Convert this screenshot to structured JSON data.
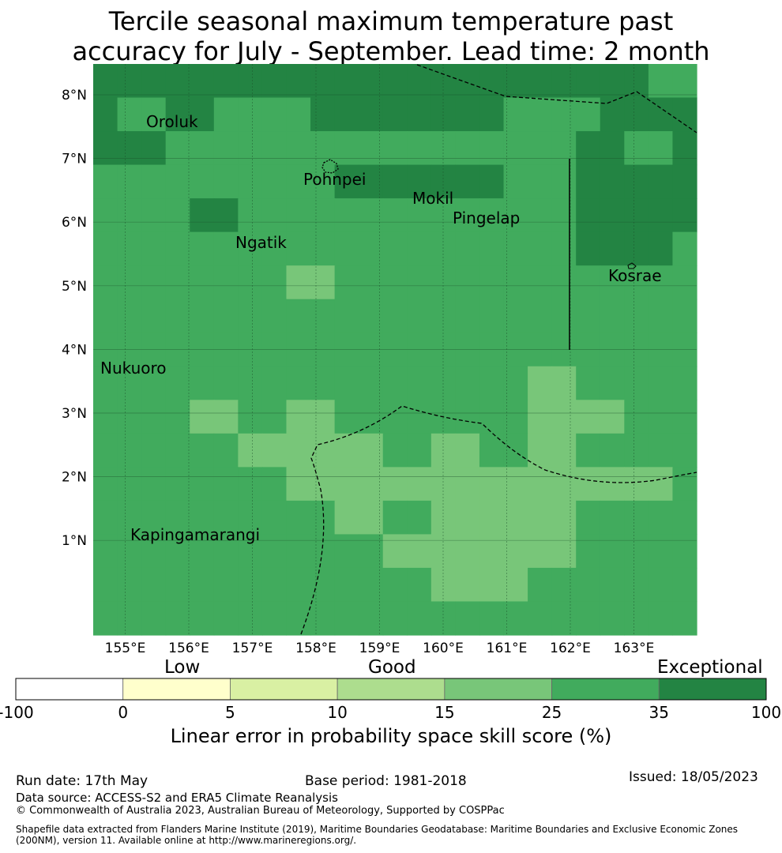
{
  "title_line1": "Tercile seasonal maximum temperature past",
  "title_line2": "accuracy for July - September. Lead time: 2 month",
  "map": {
    "lon_labels": [
      "155°E",
      "156°E",
      "157°E",
      "158°E",
      "159°E",
      "160°E",
      "161°E",
      "162°E",
      "163°E"
    ],
    "lat_labels": [
      "8°N",
      "7°N",
      "6°N",
      "5°N",
      "4°N",
      "3°N",
      "2°N",
      "1°N"
    ],
    "places": [
      "Oroluk",
      "Pohnpei",
      "Mokil",
      "Pingelap",
      "Ngatik",
      "Kosrae",
      "Nukuoro",
      "Kapingamarangi"
    ],
    "cell_levels": [
      [
        6,
        6,
        6,
        6,
        6,
        6,
        6,
        6,
        6,
        6,
        6,
        6,
        6,
        6,
        6,
        6,
        6,
        6,
        6,
        6,
        6,
        6,
        6,
        5,
        5
      ],
      [
        6,
        5,
        5,
        6,
        6,
        5,
        5,
        5,
        5,
        6,
        6,
        6,
        6,
        6,
        6,
        6,
        6,
        5,
        5,
        5,
        5,
        6,
        6,
        6,
        6
      ],
      [
        6,
        6,
        6,
        5,
        5,
        5,
        5,
        5,
        5,
        5,
        5,
        5,
        5,
        5,
        5,
        5,
        5,
        5,
        5,
        5,
        6,
        6,
        5,
        5,
        6
      ],
      [
        5,
        5,
        5,
        5,
        5,
        5,
        5,
        5,
        5,
        5,
        6,
        6,
        6,
        6,
        6,
        6,
        6,
        5,
        5,
        5,
        6,
        6,
        6,
        6,
        6
      ],
      [
        5,
        5,
        5,
        5,
        6,
        6,
        5,
        5,
        5,
        5,
        5,
        5,
        5,
        5,
        5,
        5,
        5,
        5,
        5,
        5,
        6,
        6,
        6,
        6,
        6
      ],
      [
        5,
        5,
        5,
        5,
        5,
        5,
        5,
        5,
        5,
        5,
        5,
        5,
        5,
        5,
        5,
        5,
        5,
        5,
        5,
        5,
        6,
        6,
        6,
        6,
        5
      ],
      [
        5,
        5,
        5,
        5,
        5,
        5,
        5,
        5,
        4,
        4,
        5,
        5,
        5,
        5,
        5,
        5,
        5,
        5,
        5,
        5,
        5,
        5,
        5,
        5,
        5
      ],
      [
        5,
        5,
        5,
        5,
        5,
        5,
        5,
        5,
        5,
        5,
        5,
        5,
        5,
        5,
        5,
        5,
        5,
        5,
        5,
        5,
        5,
        5,
        5,
        5,
        5
      ],
      [
        5,
        5,
        5,
        5,
        5,
        5,
        5,
        5,
        5,
        5,
        5,
        5,
        5,
        5,
        5,
        5,
        5,
        5,
        5,
        5,
        5,
        5,
        5,
        5,
        5
      ],
      [
        5,
        5,
        5,
        5,
        5,
        5,
        5,
        5,
        5,
        5,
        5,
        5,
        5,
        5,
        5,
        5,
        5,
        5,
        4,
        4,
        5,
        5,
        5,
        5,
        5
      ],
      [
        5,
        5,
        5,
        5,
        4,
        4,
        5,
        5,
        4,
        4,
        5,
        5,
        5,
        5,
        5,
        5,
        5,
        5,
        4,
        4,
        4,
        4,
        5,
        5,
        5
      ],
      [
        5,
        5,
        5,
        5,
        5,
        5,
        4,
        4,
        4,
        4,
        4,
        4,
        5,
        5,
        4,
        4,
        5,
        5,
        4,
        4,
        5,
        5,
        5,
        5,
        5
      ],
      [
        5,
        5,
        5,
        5,
        5,
        5,
        5,
        5,
        4,
        4,
        4,
        4,
        4,
        4,
        4,
        4,
        4,
        4,
        4,
        4,
        4,
        4,
        4,
        4,
        5
      ],
      [
        5,
        5,
        5,
        5,
        5,
        5,
        5,
        5,
        5,
        5,
        4,
        4,
        5,
        5,
        4,
        4,
        4,
        4,
        4,
        4,
        5,
        5,
        5,
        5,
        5
      ],
      [
        5,
        5,
        5,
        5,
        5,
        5,
        5,
        5,
        5,
        5,
        5,
        5,
        4,
        4,
        4,
        4,
        4,
        4,
        4,
        4,
        5,
        5,
        5,
        5,
        5
      ],
      [
        5,
        5,
        5,
        5,
        5,
        5,
        5,
        5,
        5,
        5,
        5,
        5,
        5,
        5,
        4,
        4,
        4,
        4,
        5,
        5,
        5,
        5,
        5,
        5,
        5
      ],
      [
        5,
        5,
        5,
        5,
        5,
        5,
        5,
        5,
        5,
        5,
        5,
        5,
        5,
        5,
        5,
        5,
        5,
        5,
        5,
        5,
        5,
        5,
        5,
        5,
        5
      ]
    ]
  },
  "colorbar": {
    "colors": [
      "#ffffff",
      "#ffffcc",
      "#d9f0a3",
      "#addd8e",
      "#78c679",
      "#41ab5d",
      "#238443"
    ],
    "ticks": [
      "-100",
      "0",
      "5",
      "10",
      "15",
      "25",
      "35",
      "100"
    ],
    "words": [
      "Low",
      "Good",
      "Exceptional"
    ],
    "label": "Linear error in probability space skill score (%)"
  },
  "footer": {
    "run_date": "Run date: 17th May",
    "base_period": "Base period: 1981-2018",
    "issued": "Issued: 18/05/2023",
    "data_source": "Data source: ACCESS-S2 and ERA5 Climate Reanalysis",
    "copyright": "© Commonwealth of Australia 2023, Australian Bureau of Meteorology, Supported by COSPPac",
    "shapefile": "Shapefile data extracted from Flanders Marine Institute (2019), Maritime Boundaries Geodatabase: Maritime Boundaries and Exclusive Economic Zones (200NM), version 11. Available online at http://www.marineregions.org/."
  }
}
